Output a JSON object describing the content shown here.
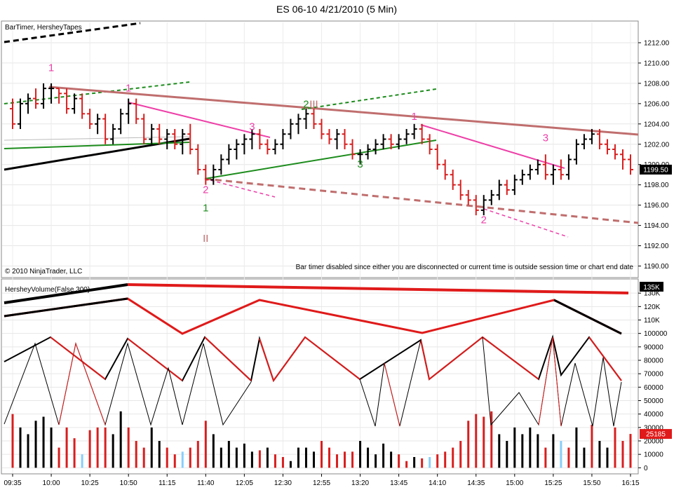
{
  "title": "ES 06-10  4/21/2010 (5 Min)",
  "copyright": "© 2010 NinjaTrader, LLC",
  "colors": {
    "up_bar": "#000000",
    "down_bar": "#d81e1e",
    "neutral_bar": "#87cefa",
    "magenta": "#ee3fa8",
    "brown": "#c06e6e",
    "green": "#1c8c1c",
    "orange": "#f07a45"
  },
  "price_panel": {
    "indicator_label": "BarTimer, HersheyTapes",
    "message": "Bar timer disabled since either you are disconnected or current time is outside session time or chart end date",
    "last_price": "1199.50",
    "ylim": [
      1189,
      1214
    ],
    "ticks": [
      1190,
      1192,
      1194,
      1196,
      1198,
      1200,
      1202,
      1204,
      1206,
      1208,
      1210,
      1212
    ],
    "tick_labels": [
      "1190.00",
      "1192.00",
      "1194.00",
      "1196.00",
      "1198.00",
      "1200.00",
      "1202.00",
      "1204.00",
      "1206.00",
      "1208.00",
      "1210.00",
      "1212.00"
    ],
    "markers": [
      {
        "text": "1",
        "time": "10:00",
        "price": 1209.2,
        "color": "#ee3fa8"
      },
      {
        "text": "1",
        "time": "10:50",
        "price": 1207.2,
        "color": "#ee3fa8"
      },
      {
        "text": "2",
        "time": "11:40",
        "price": 1197.2,
        "color": "#ee3fa8"
      },
      {
        "text": "1",
        "time": "11:40",
        "price": 1195.4,
        "color": "#1c8c1c"
      },
      {
        "text": "II",
        "time": "11:40",
        "price": 1192.4,
        "color": "#c06e6e"
      },
      {
        "text": "3",
        "time": "12:10",
        "price": 1203.4,
        "color": "#ee3fa8"
      },
      {
        "text": "2",
        "time": "12:45",
        "price": 1205.6,
        "color": "#1c8c1c"
      },
      {
        "text": "III",
        "time": "12:50",
        "price": 1205.6,
        "color": "#c06e6e"
      },
      {
        "text": "3",
        "time": "13:20",
        "price": 1199.7,
        "color": "#1c8c1c"
      },
      {
        "text": "1",
        "time": "13:55",
        "price": 1204.4,
        "color": "#ee3fa8"
      },
      {
        "text": "2",
        "time": "14:40",
        "price": 1194.2,
        "color": "#ee3fa8"
      },
      {
        "text": "3",
        "time": "15:20",
        "price": 1202.3,
        "color": "#ee3fa8"
      }
    ]
  },
  "volume_panel": {
    "indicator_label": "HersheyVolume(False,300)",
    "last_volume": "25185",
    "peak_label": "135K",
    "ylim": [
      -4000,
      140000
    ],
    "ticks": [
      0,
      10000,
      20000,
      30000,
      40000,
      50000,
      60000,
      70000,
      80000,
      90000,
      100000,
      110000,
      120000,
      130000
    ],
    "tick_labels": [
      "0",
      "10000",
      "20000",
      "30000",
      "40000",
      "50000",
      "60000",
      "70000",
      "80000",
      "90000",
      "100000",
      "110K",
      "120K",
      "130K"
    ]
  },
  "x_axis": {
    "labels": [
      "09:35",
      "10:00",
      "10:25",
      "10:50",
      "11:15",
      "11:40",
      "12:05",
      "12:30",
      "12:55",
      "13:20",
      "13:45",
      "14:10",
      "14:35",
      "15:00",
      "15:25",
      "15:50",
      "16:15"
    ]
  },
  "chart_data": {
    "type": "ohlc",
    "interval": "5 Min",
    "times": [
      "09:35",
      "09:40",
      "09:45",
      "09:50",
      "09:55",
      "10:00",
      "10:05",
      "10:10",
      "10:15",
      "10:20",
      "10:25",
      "10:30",
      "10:35",
      "10:40",
      "10:45",
      "10:50",
      "10:55",
      "11:00",
      "11:05",
      "11:10",
      "11:15",
      "11:20",
      "11:25",
      "11:30",
      "11:35",
      "11:40",
      "11:45",
      "11:50",
      "11:55",
      "12:00",
      "12:05",
      "12:10",
      "12:15",
      "12:20",
      "12:25",
      "12:30",
      "12:35",
      "12:40",
      "12:45",
      "12:50",
      "12:55",
      "13:00",
      "13:05",
      "13:10",
      "13:15",
      "13:20",
      "13:25",
      "13:30",
      "13:35",
      "13:40",
      "13:45",
      "13:50",
      "13:55",
      "14:00",
      "14:05",
      "14:10",
      "14:15",
      "14:20",
      "14:25",
      "14:30",
      "14:35",
      "14:40",
      "14:45",
      "14:50",
      "14:55",
      "15:00",
      "15:05",
      "15:10",
      "15:15",
      "15:20",
      "15:25",
      "15:30",
      "15:35",
      "15:40",
      "15:45",
      "15:50",
      "15:55",
      "16:00",
      "16:05",
      "16:10",
      "16:15"
    ],
    "bars": [
      {
        "o": 1205.5,
        "h": 1206.5,
        "l": 1203.5,
        "c": 1204.0
      },
      {
        "o": 1204.0,
        "h": 1206.5,
        "l": 1203.5,
        "c": 1206.0
      },
      {
        "o": 1206.0,
        "h": 1207.0,
        "l": 1205.0,
        "c": 1206.5
      },
      {
        "o": 1206.5,
        "h": 1207.5,
        "l": 1205.5,
        "c": 1206.0
      },
      {
        "o": 1206.0,
        "h": 1208.0,
        "l": 1205.5,
        "c": 1207.5
      },
      {
        "o": 1207.5,
        "h": 1208.0,
        "l": 1206.0,
        "c": 1207.5
      },
      {
        "o": 1207.5,
        "h": 1207.5,
        "l": 1206.0,
        "c": 1207.0
      },
      {
        "o": 1207.0,
        "h": 1207.5,
        "l": 1205.0,
        "c": 1205.5
      },
      {
        "o": 1205.5,
        "h": 1207.0,
        "l": 1205.0,
        "c": 1206.5
      },
      {
        "o": 1206.5,
        "h": 1207.0,
        "l": 1204.5,
        "c": 1205.0
      },
      {
        "o": 1205.0,
        "h": 1205.5,
        "l": 1203.5,
        "c": 1204.0
      },
      {
        "o": 1204.0,
        "h": 1205.0,
        "l": 1203.0,
        "c": 1204.5
      },
      {
        "o": 1204.5,
        "h": 1205.0,
        "l": 1202.0,
        "c": 1202.5
      },
      {
        "o": 1202.5,
        "h": 1204.0,
        "l": 1202.0,
        "c": 1203.5
      },
      {
        "o": 1203.5,
        "h": 1205.5,
        "l": 1203.0,
        "c": 1205.0
      },
      {
        "o": 1205.0,
        "h": 1206.5,
        "l": 1204.0,
        "c": 1206.0
      },
      {
        "o": 1206.0,
        "h": 1206.5,
        "l": 1204.0,
        "c": 1204.5
      },
      {
        "o": 1204.5,
        "h": 1205.0,
        "l": 1202.0,
        "c": 1202.5
      },
      {
        "o": 1202.5,
        "h": 1204.0,
        "l": 1202.0,
        "c": 1203.5
      },
      {
        "o": 1203.5,
        "h": 1204.0,
        "l": 1202.0,
        "c": 1202.5
      },
      {
        "o": 1202.5,
        "h": 1203.5,
        "l": 1201.5,
        "c": 1203.0
      },
      {
        "o": 1203.0,
        "h": 1203.5,
        "l": 1201.5,
        "c": 1202.0
      },
      {
        "o": 1202.0,
        "h": 1203.5,
        "l": 1201.0,
        "c": 1203.0
      },
      {
        "o": 1203.0,
        "h": 1204.0,
        "l": 1201.0,
        "c": 1201.5
      },
      {
        "o": 1201.5,
        "h": 1202.0,
        "l": 1199.0,
        "c": 1199.5
      },
      {
        "o": 1199.5,
        "h": 1200.0,
        "l": 1198.0,
        "c": 1198.5
      },
      {
        "o": 1198.5,
        "h": 1200.0,
        "l": 1198.0,
        "c": 1199.5
      },
      {
        "o": 1199.5,
        "h": 1201.0,
        "l": 1199.0,
        "c": 1200.5
      },
      {
        "o": 1200.5,
        "h": 1202.0,
        "l": 1200.0,
        "c": 1201.5
      },
      {
        "o": 1201.5,
        "h": 1202.5,
        "l": 1200.5,
        "c": 1202.0
      },
      {
        "o": 1202.0,
        "h": 1203.0,
        "l": 1201.0,
        "c": 1202.5
      },
      {
        "o": 1202.5,
        "h": 1203.5,
        "l": 1201.5,
        "c": 1203.0
      },
      {
        "o": 1203.0,
        "h": 1203.5,
        "l": 1201.5,
        "c": 1202.0
      },
      {
        "o": 1202.0,
        "h": 1202.5,
        "l": 1201.0,
        "c": 1201.5
      },
      {
        "o": 1201.5,
        "h": 1202.5,
        "l": 1201.0,
        "c": 1202.0
      },
      {
        "o": 1202.0,
        "h": 1203.5,
        "l": 1201.5,
        "c": 1203.0
      },
      {
        "o": 1203.0,
        "h": 1204.5,
        "l": 1202.5,
        "c": 1204.0
      },
      {
        "o": 1204.0,
        "h": 1205.0,
        "l": 1203.0,
        "c": 1204.5
      },
      {
        "o": 1204.5,
        "h": 1205.5,
        "l": 1203.5,
        "c": 1205.0
      },
      {
        "o": 1205.0,
        "h": 1205.5,
        "l": 1203.5,
        "c": 1204.0
      },
      {
        "o": 1204.0,
        "h": 1204.5,
        "l": 1202.5,
        "c": 1203.0
      },
      {
        "o": 1203.0,
        "h": 1203.5,
        "l": 1202.0,
        "c": 1202.5
      },
      {
        "o": 1202.5,
        "h": 1203.5,
        "l": 1201.5,
        "c": 1203.0
      },
      {
        "o": 1203.0,
        "h": 1203.5,
        "l": 1201.5,
        "c": 1202.0
      },
      {
        "o": 1202.0,
        "h": 1202.5,
        "l": 1200.5,
        "c": 1201.0
      },
      {
        "o": 1201.0,
        "h": 1201.5,
        "l": 1200.0,
        "c": 1201.0
      },
      {
        "o": 1201.0,
        "h": 1202.0,
        "l": 1200.5,
        "c": 1201.5
      },
      {
        "o": 1201.5,
        "h": 1202.5,
        "l": 1201.0,
        "c": 1202.0
      },
      {
        "o": 1202.0,
        "h": 1203.0,
        "l": 1201.5,
        "c": 1202.5
      },
      {
        "o": 1202.5,
        "h": 1203.0,
        "l": 1201.5,
        "c": 1202.0
      },
      {
        "o": 1202.0,
        "h": 1203.0,
        "l": 1201.5,
        "c": 1202.5
      },
      {
        "o": 1202.5,
        "h": 1203.5,
        "l": 1202.0,
        "c": 1203.0
      },
      {
        "o": 1203.0,
        "h": 1204.0,
        "l": 1202.5,
        "c": 1203.5
      },
      {
        "o": 1203.5,
        "h": 1204.0,
        "l": 1202.0,
        "c": 1202.5
      },
      {
        "o": 1202.5,
        "h": 1203.0,
        "l": 1201.0,
        "c": 1201.5
      },
      {
        "o": 1201.5,
        "h": 1202.0,
        "l": 1199.5,
        "c": 1200.0
      },
      {
        "o": 1200.0,
        "h": 1200.5,
        "l": 1198.5,
        "c": 1199.0
      },
      {
        "o": 1199.0,
        "h": 1199.5,
        "l": 1197.5,
        "c": 1198.0
      },
      {
        "o": 1198.0,
        "h": 1198.5,
        "l": 1196.5,
        "c": 1197.0
      },
      {
        "o": 1197.0,
        "h": 1197.5,
        "l": 1196.0,
        "c": 1196.5
      },
      {
        "o": 1196.5,
        "h": 1197.0,
        "l": 1195.0,
        "c": 1195.5
      },
      {
        "o": 1195.5,
        "h": 1197.0,
        "l": 1195.0,
        "c": 1196.5
      },
      {
        "o": 1196.5,
        "h": 1197.5,
        "l": 1196.0,
        "c": 1197.0
      },
      {
        "o": 1197.0,
        "h": 1198.5,
        "l": 1196.5,
        "c": 1198.0
      },
      {
        "o": 1198.0,
        "h": 1198.5,
        "l": 1197.0,
        "c": 1197.5
      },
      {
        "o": 1197.5,
        "h": 1199.0,
        "l": 1197.0,
        "c": 1198.5
      },
      {
        "o": 1198.5,
        "h": 1199.5,
        "l": 1198.0,
        "c": 1199.0
      },
      {
        "o": 1199.0,
        "h": 1200.0,
        "l": 1198.5,
        "c": 1199.5
      },
      {
        "o": 1199.5,
        "h": 1200.5,
        "l": 1199.0,
        "c": 1200.0
      },
      {
        "o": 1200.0,
        "h": 1201.0,
        "l": 1198.5,
        "c": 1199.0
      },
      {
        "o": 1199.0,
        "h": 1200.0,
        "l": 1198.0,
        "c": 1199.5
      },
      {
        "o": 1199.5,
        "h": 1200.5,
        "l": 1198.5,
        "c": 1199.0
      },
      {
        "o": 1199.0,
        "h": 1201.0,
        "l": 1198.5,
        "c": 1200.5
      },
      {
        "o": 1200.5,
        "h": 1202.5,
        "l": 1200.0,
        "c": 1202.0
      },
      {
        "o": 1202.0,
        "h": 1203.0,
        "l": 1201.5,
        "c": 1202.5
      },
      {
        "o": 1202.5,
        "h": 1203.5,
        "l": 1202.0,
        "c": 1203.0
      },
      {
        "o": 1203.0,
        "h": 1203.5,
        "l": 1201.5,
        "c": 1202.0
      },
      {
        "o": 1202.0,
        "h": 1202.5,
        "l": 1201.0,
        "c": 1201.5
      },
      {
        "o": 1201.5,
        "h": 1202.0,
        "l": 1200.5,
        "c": 1201.0
      },
      {
        "o": 1201.0,
        "h": 1201.5,
        "l": 1199.5,
        "c": 1200.5
      },
      {
        "o": 1200.5,
        "h": 1201.0,
        "l": 1199.0,
        "c": 1199.5
      }
    ],
    "volume": [
      40000,
      30000,
      25000,
      35000,
      38000,
      30000,
      15000,
      30000,
      22000,
      10000,
      28000,
      30000,
      30000,
      25000,
      42000,
      30000,
      20000,
      15000,
      30000,
      20000,
      15000,
      10000,
      12000,
      15000,
      20000,
      35000,
      25000,
      15000,
      20000,
      15000,
      18000,
      12000,
      13000,
      15000,
      10000,
      8000,
      5000,
      15000,
      15000,
      12000,
      20000,
      15000,
      10000,
      12000,
      12000,
      20000,
      15000,
      10000,
      18000,
      12000,
      10000,
      5000,
      8000,
      7000,
      8000,
      10000,
      12000,
      15000,
      20000,
      35000,
      40000,
      38000,
      42000,
      25000,
      20000,
      30000,
      25000,
      30000,
      25000,
      15000,
      25000,
      20000,
      15000,
      30000,
      15000,
      32000,
      20000,
      15000,
      30000,
      20000,
      25185
    ],
    "volume_colors": [
      "down",
      "up",
      "up",
      "up",
      "up",
      "up",
      "down",
      "down",
      "down",
      "neutral",
      "down",
      "down",
      "down",
      "up",
      "up",
      "down",
      "down",
      "down",
      "up",
      "up",
      "down",
      "down",
      "neutral",
      "down",
      "down",
      "down",
      "up",
      "up",
      "up",
      "up",
      "up",
      "up",
      "down",
      "up",
      "down",
      "down",
      "up",
      "up",
      "up",
      "up",
      "down",
      "down",
      "down",
      "down",
      "down",
      "up",
      "up",
      "up",
      "up",
      "up",
      "down",
      "down",
      "up",
      "down",
      "neutral",
      "down",
      "down",
      "down",
      "down",
      "down",
      "down",
      "down",
      "down",
      "up",
      "up",
      "up",
      "up",
      "up",
      "up",
      "down",
      "up",
      "neutral",
      "down",
      "up",
      "up",
      "down",
      "up",
      "up",
      "down",
      "down",
      "down"
    ]
  }
}
